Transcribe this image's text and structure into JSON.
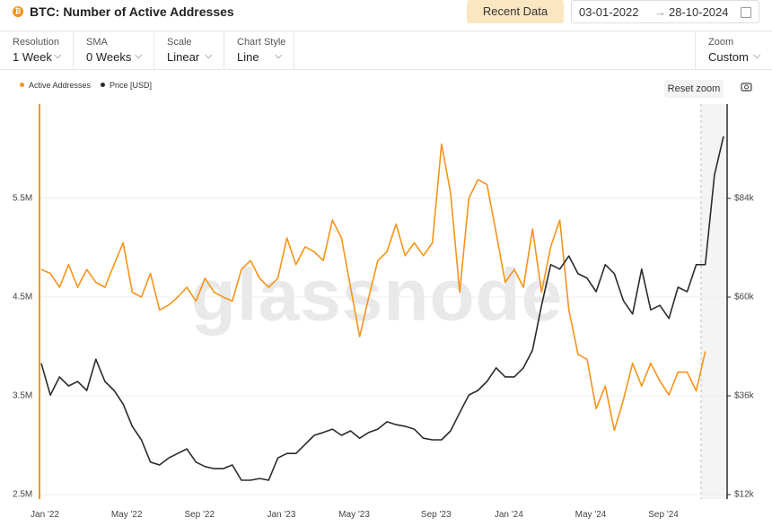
{
  "header": {
    "title": "BTC: Number of Active Addresses",
    "recent_button": "Recent Data",
    "date_from": "03-01-2022",
    "date_arrow": "→",
    "date_to": "28-10-2024"
  },
  "controls": [
    {
      "label": "Resolution",
      "value": "1 Week"
    },
    {
      "label": "SMA",
      "value": "0 Weeks"
    },
    {
      "label": "Scale",
      "value": "Linear"
    },
    {
      "label": "Chart Style",
      "value": "Line"
    },
    {
      "label": "Zoom",
      "value": "Custom"
    }
  ],
  "reset_zoom": "Reset zoom",
  "chart_data": {
    "type": "line",
    "watermark": "glassnode",
    "legend": "top-left",
    "grid": true,
    "categories": [
      "Jan '22",
      null,
      null,
      null,
      null,
      null,
      null,
      null,
      null,
      "May '22",
      null,
      null,
      null,
      null,
      null,
      null,
      null,
      "Sep '22",
      null,
      null,
      null,
      null,
      null,
      null,
      null,
      null,
      "Jan '23",
      null,
      null,
      null,
      null,
      null,
      null,
      null,
      "May '23",
      null,
      null,
      null,
      null,
      null,
      null,
      null,
      null,
      "Sep '23",
      null,
      null,
      null,
      null,
      null,
      null,
      null,
      "Jan '24",
      null,
      null,
      null,
      null,
      null,
      null,
      null,
      null,
      "May '24",
      null,
      null,
      null,
      null,
      null,
      null,
      null,
      "Sep '24",
      null,
      null,
      null,
      null,
      null,
      null,
      null
    ],
    "ylim": [
      2500000,
      6500000
    ],
    "yticks": [
      {
        "value": 2500000,
        "label": "2.5M"
      },
      {
        "value": 3500000,
        "label": "3.5M"
      },
      {
        "value": 4500000,
        "label": "4.5M"
      },
      {
        "value": 5500000,
        "label": "5.5M"
      }
    ],
    "y2lim": [
      12000,
      108000
    ],
    "y2ticks": [
      {
        "value": 12000,
        "label": "$12k"
      },
      {
        "value": 36000,
        "label": "$36k"
      },
      {
        "value": 60000,
        "label": "$60k"
      },
      {
        "value": 84000,
        "label": "$84k"
      }
    ],
    "series": [
      {
        "name": "Active Addresses",
        "color": "#f7931a",
        "axis": "y",
        "values": [
          4780000,
          4740000,
          4600000,
          4830000,
          4600000,
          4780000,
          4650000,
          4600000,
          4830000,
          5050000,
          4550000,
          4500000,
          4740000,
          4370000,
          4420000,
          4500000,
          4600000,
          4460000,
          4690000,
          4550000,
          4500000,
          4460000,
          4780000,
          4870000,
          4690000,
          4600000,
          4690000,
          5100000,
          4830000,
          5010000,
          4960000,
          4870000,
          5280000,
          5100000,
          4600000,
          4100000,
          4500000,
          4870000,
          4960000,
          5240000,
          4920000,
          5050000,
          4920000,
          5050000,
          6050000,
          5550000,
          4550000,
          5500000,
          5690000,
          5640000,
          5150000,
          4650000,
          4780000,
          4600000,
          5190000,
          4550000,
          5010000,
          5280000,
          4370000,
          3920000,
          3870000,
          3370000,
          3600000,
          3150000,
          3460000,
          3830000,
          3600000,
          3830000,
          3650000,
          3510000,
          3740000,
          3740000,
          3550000,
          3950000,
          null,
          null
        ]
      },
      {
        "name": "Price [USD]",
        "color": "#2b2b2b",
        "axis": "y2",
        "values": [
          43900,
          36200,
          40600,
          38400,
          39500,
          37300,
          44900,
          39500,
          37300,
          34000,
          28600,
          25300,
          19900,
          19200,
          20900,
          22000,
          23100,
          19900,
          18800,
          18300,
          18300,
          19200,
          15500,
          15500,
          15900,
          15500,
          20900,
          22000,
          22000,
          24200,
          26400,
          27100,
          27900,
          26400,
          27500,
          25700,
          27100,
          27900,
          29700,
          29000,
          28600,
          27900,
          25700,
          25300,
          25300,
          27500,
          31900,
          36200,
          37300,
          39500,
          42800,
          40600,
          40600,
          42800,
          47100,
          58000,
          67900,
          66800,
          70000,
          65700,
          64600,
          61300,
          67900,
          65700,
          59100,
          55900,
          66800,
          56900,
          58000,
          54800,
          62400,
          61300,
          67900,
          67900,
          89700,
          99100
        ]
      }
    ]
  }
}
